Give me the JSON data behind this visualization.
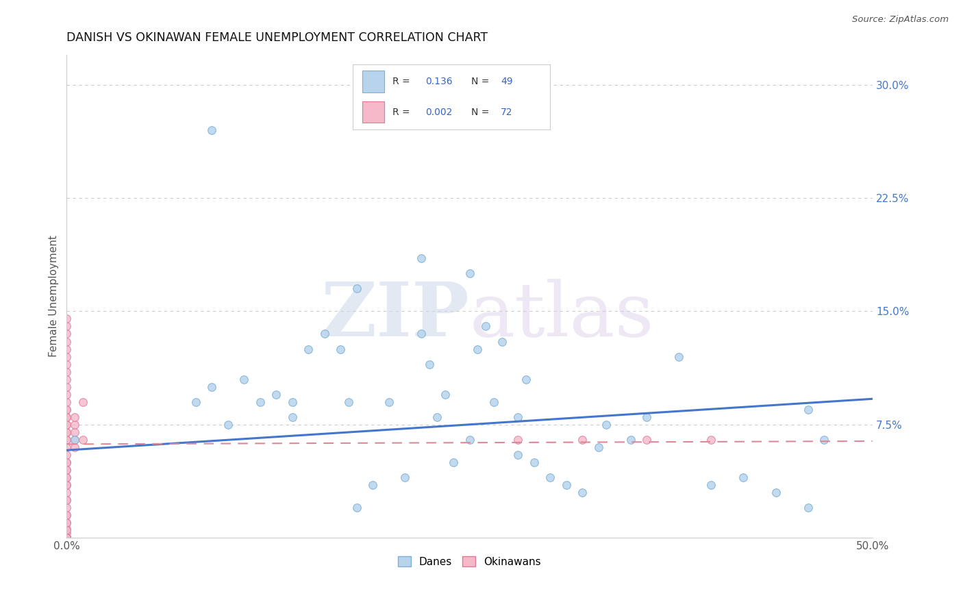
{
  "title": "DANISH VS OKINAWAN FEMALE UNEMPLOYMENT CORRELATION CHART",
  "source": "Source: ZipAtlas.com",
  "ylabel": "Female Unemployment",
  "xlim": [
    0.0,
    0.5
  ],
  "ylim": [
    0.0,
    0.32
  ],
  "grid_color": "#cccccc",
  "background_color": "#ffffff",
  "danes_color": "#b8d4ed",
  "danes_edge_color": "#7bafd4",
  "okinawans_color": "#f4b8c8",
  "okinawans_edge_color": "#e0789a",
  "danes_trend_color": "#4477cc",
  "okinawans_trend_color": "#dd8899",
  "danes_x": [
    0.005,
    0.08,
    0.09,
    0.1,
    0.11,
    0.12,
    0.13,
    0.14,
    0.15,
    0.16,
    0.17,
    0.175,
    0.18,
    0.19,
    0.2,
    0.21,
    0.22,
    0.225,
    0.23,
    0.235,
    0.24,
    0.25,
    0.255,
    0.26,
    0.265,
    0.27,
    0.28,
    0.285,
    0.29,
    0.3,
    0.31,
    0.32,
    0.33,
    0.335,
    0.35,
    0.36,
    0.38,
    0.4,
    0.42,
    0.44,
    0.46,
    0.47,
    0.25,
    0.22,
    0.18,
    0.14,
    0.09,
    0.46,
    0.28
  ],
  "danes_y": [
    0.065,
    0.09,
    0.1,
    0.075,
    0.105,
    0.09,
    0.095,
    0.08,
    0.125,
    0.135,
    0.125,
    0.09,
    0.02,
    0.035,
    0.09,
    0.04,
    0.135,
    0.115,
    0.08,
    0.095,
    0.05,
    0.065,
    0.125,
    0.14,
    0.09,
    0.13,
    0.08,
    0.105,
    0.05,
    0.04,
    0.035,
    0.03,
    0.06,
    0.075,
    0.065,
    0.08,
    0.12,
    0.035,
    0.04,
    0.03,
    0.085,
    0.065,
    0.175,
    0.185,
    0.165,
    0.09,
    0.27,
    0.02,
    0.055
  ],
  "okinawans_x": [
    0.0,
    0.0,
    0.0,
    0.0,
    0.0,
    0.0,
    0.0,
    0.0,
    0.0,
    0.0,
    0.0,
    0.0,
    0.0,
    0.0,
    0.0,
    0.0,
    0.0,
    0.0,
    0.0,
    0.0,
    0.0,
    0.0,
    0.0,
    0.0,
    0.0,
    0.0,
    0.0,
    0.0,
    0.0,
    0.0,
    0.0,
    0.0,
    0.0,
    0.0,
    0.0,
    0.0,
    0.0,
    0.0,
    0.0,
    0.0,
    0.0,
    0.0,
    0.0,
    0.0,
    0.0,
    0.0,
    0.0,
    0.0,
    0.0,
    0.0,
    0.0,
    0.0,
    0.0,
    0.0,
    0.0,
    0.0,
    0.0,
    0.0,
    0.0,
    0.0,
    0.0,
    0.005,
    0.005,
    0.005,
    0.005,
    0.005,
    0.01,
    0.01,
    0.28,
    0.32,
    0.36,
    0.4
  ],
  "okinawans_y": [
    0.0,
    0.003,
    0.006,
    0.01,
    0.015,
    0.02,
    0.025,
    0.03,
    0.035,
    0.04,
    0.045,
    0.05,
    0.055,
    0.06,
    0.065,
    0.07,
    0.075,
    0.08,
    0.085,
    0.09,
    0.095,
    0.1,
    0.105,
    0.11,
    0.115,
    0.12,
    0.125,
    0.13,
    0.135,
    0.14,
    0.145,
    0.065,
    0.07,
    0.075,
    0.08,
    0.085,
    0.05,
    0.045,
    0.04,
    0.035,
    0.025,
    0.015,
    0.01,
    0.005,
    0.0,
    0.0,
    0.0,
    0.0,
    0.0,
    0.0,
    0.0,
    0.0,
    0.0,
    0.0,
    0.0,
    0.0,
    0.0,
    0.0,
    0.0,
    0.0,
    0.0,
    0.065,
    0.07,
    0.075,
    0.08,
    0.06,
    0.09,
    0.065,
    0.065,
    0.065,
    0.065,
    0.065
  ],
  "danes_trend_x": [
    0.0,
    0.5
  ],
  "danes_trend_y_start": 0.058,
  "danes_trend_y_end": 0.092,
  "oki_trend_y_start": 0.062,
  "oki_trend_y_end": 0.064
}
